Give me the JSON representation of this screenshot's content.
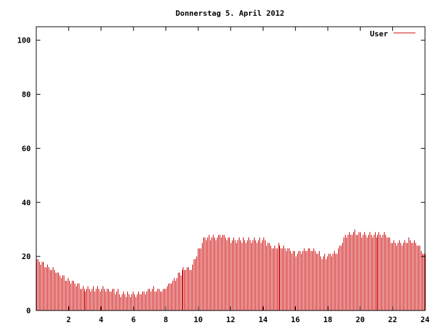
{
  "chart_data": {
    "type": "bar",
    "title": "Donnerstag 5. April 2012",
    "xlabel": "",
    "ylabel": "",
    "xlim": [
      0,
      24
    ],
    "ylim": [
      0,
      105
    ],
    "x_ticks": [
      "2",
      "4",
      "6",
      "8",
      "10",
      "12",
      "14",
      "16",
      "18",
      "20",
      "22",
      "24"
    ],
    "y_ticks": [
      "0",
      "20",
      "40",
      "60",
      "80",
      "100"
    ],
    "grid": false,
    "legend_position": "top-right",
    "series": [
      {
        "name": "User",
        "color": "#cc0000",
        "x": [
          0,
          2,
          3,
          4,
          5,
          5.2,
          6,
          6.4,
          7,
          7.8,
          8,
          8.6,
          9,
          9.6,
          10,
          10.4,
          11,
          11.4,
          12,
          13,
          14,
          14.6,
          15,
          15.4,
          16,
          16.6,
          17,
          17.6,
          18,
          18.6,
          19,
          19.6,
          20,
          20.6,
          21,
          21.6,
          22,
          22.6,
          23,
          23.6,
          24
        ],
        "values": [
          19,
          11,
          8,
          8,
          7,
          6,
          6,
          6,
          8,
          7,
          9,
          12,
          15,
          16,
          22,
          27,
          27,
          28,
          26,
          26,
          26,
          23,
          24,
          23,
          21,
          22,
          23,
          20,
          20,
          22,
          27,
          29,
          28,
          28,
          28,
          28,
          25,
          25,
          26,
          24,
          20
        ]
      }
    ]
  }
}
